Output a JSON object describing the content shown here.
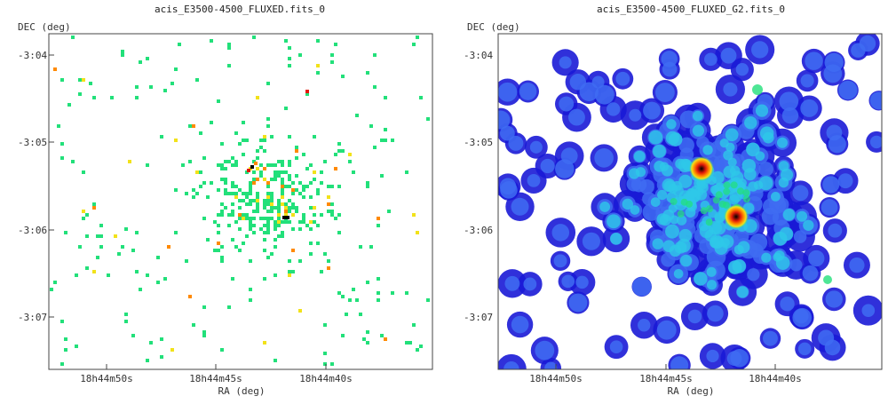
{
  "panels": [
    {
      "title": "acis_E3500-4500_FLUXED.fits_0",
      "ylabel": "DEC (deg)",
      "xlabel": "RA (deg)",
      "yticks": [
        "-3:04",
        "-3:05",
        "-3:06",
        "-3:07"
      ],
      "xticks": [
        "18h44m50s",
        "18h44m45s",
        "18h44m40s"
      ],
      "style": "sparse"
    },
    {
      "title": "acis_E3500-4500_FLUXED_G2.fits_0",
      "ylabel": "DEC (deg)",
      "xlabel": "RA (deg)",
      "yticks": [
        "-3:04",
        "-3:05",
        "-3:06",
        "-3:07"
      ],
      "xticks": [
        "18h44m50s",
        "18h44m45s",
        "18h44m40s"
      ],
      "style": "smoothed"
    }
  ],
  "colors": {
    "green": "#22e07a",
    "yellow": "#f2e21a",
    "orange": "#ff8a00",
    "red": "#e21a0a",
    "black": "#000000",
    "blue_dark": "#1a1ad6",
    "blue": "#3f6cf2",
    "cyan": "#2ec8e8"
  }
}
